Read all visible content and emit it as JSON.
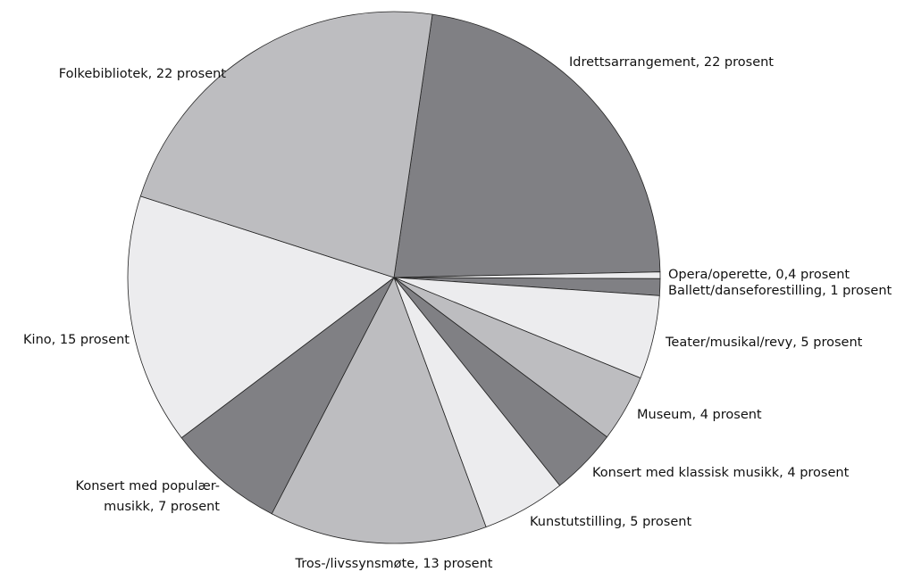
{
  "chart_data": {
    "type": "pie",
    "categories": [
      "Idrettsarrangement",
      "Opera/operette",
      "Ballett/danseforestilling",
      "Teater/musikal/revy",
      "Museum",
      "Konsert med klassisk musikk",
      "Kunstutstilling",
      "Tros-/livssynsmøte",
      "Konsert med populærmusikk",
      "Kino",
      "Folkebibliotek"
    ],
    "values": [
      22,
      0.4,
      1,
      5,
      4,
      4,
      5,
      13,
      7,
      15,
      22
    ],
    "value_labels": [
      [
        "Idrettsarrangement, 22 prosent"
      ],
      [
        "Opera/operette, 0,4 prosent"
      ],
      [
        "Ballett/danseforestilling, 1 prosent"
      ],
      [
        "Teater/musikal/revy, 5 prosent"
      ],
      [
        "Museum, 4 prosent"
      ],
      [
        "Konsert med klassisk musikk, 4 prosent"
      ],
      [
        "Kunstutstilling, 5 prosent"
      ],
      [
        "Tros-/livssynsmøte, 13 prosent"
      ],
      [
        "Konsert med populær-",
        "musikk, 7 prosent"
      ],
      [
        "Kino, 15 prosent"
      ],
      [
        "Folkebibliotek, 22 prosent"
      ]
    ],
    "colors": [
      "#808084",
      "#ececee",
      "#808084",
      "#ececee",
      "#bdbdc0",
      "#808084",
      "#ececee",
      "#bdbdc0",
      "#808084",
      "#ececee",
      "#bdbdc0"
    ]
  }
}
